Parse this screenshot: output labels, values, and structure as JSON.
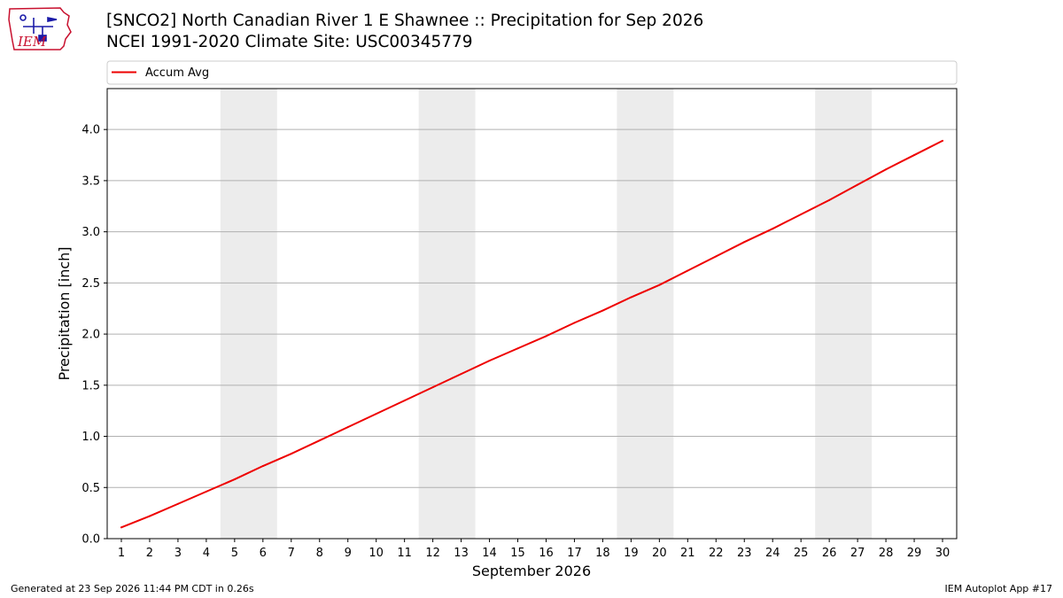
{
  "header": {
    "title_line1": "[SNCO2] North Canadian River 1 E Shawnee :: Precipitation for Sep 2026",
    "title_line2": "NCEI 1991-2020 Climate Site: USC00345779",
    "logo_text": "IEM"
  },
  "footer": {
    "generated": "Generated at 23 Sep 2026 11:44 PM CDT in 0.26s",
    "app": "IEM Autoplot App #17"
  },
  "colors": {
    "line": "#ee0000",
    "weekend_band": "#ececec",
    "grid": "#b0b0b0",
    "logo_red": "#c8102e",
    "logo_blue": "#1a1aa8"
  },
  "chart_data": {
    "type": "line",
    "xlabel": "September 2026",
    "ylabel": "Precipitation [inch]",
    "xlim": [
      0.5,
      30.5
    ],
    "ylim": [
      0,
      4.4
    ],
    "x_ticks": [
      1,
      2,
      3,
      4,
      5,
      6,
      7,
      8,
      9,
      10,
      11,
      12,
      13,
      14,
      15,
      16,
      17,
      18,
      19,
      20,
      21,
      22,
      23,
      24,
      25,
      26,
      27,
      28,
      29,
      30
    ],
    "y_ticks": [
      "0.0",
      "0.5",
      "1.0",
      "1.5",
      "2.0",
      "2.5",
      "3.0",
      "3.5",
      "4.0"
    ],
    "grid": "horizontal",
    "legend_position": "top",
    "shaded_days": [
      [
        5,
        6
      ],
      [
        12,
        13
      ],
      [
        19,
        20
      ],
      [
        26,
        27
      ]
    ],
    "series": [
      {
        "name": "Accum Avg",
        "x": [
          1,
          2,
          3,
          4,
          5,
          6,
          7,
          8,
          9,
          10,
          11,
          12,
          13,
          14,
          15,
          16,
          17,
          18,
          19,
          20,
          21,
          22,
          23,
          24,
          25,
          26,
          27,
          28,
          29,
          30
        ],
        "values": [
          0.11,
          0.22,
          0.34,
          0.46,
          0.58,
          0.71,
          0.83,
          0.96,
          1.09,
          1.22,
          1.35,
          1.48,
          1.61,
          1.74,
          1.86,
          1.98,
          2.11,
          2.23,
          2.36,
          2.48,
          2.62,
          2.76,
          2.9,
          3.03,
          3.17,
          3.31,
          3.46,
          3.61,
          3.75,
          3.89
        ]
      }
    ]
  }
}
